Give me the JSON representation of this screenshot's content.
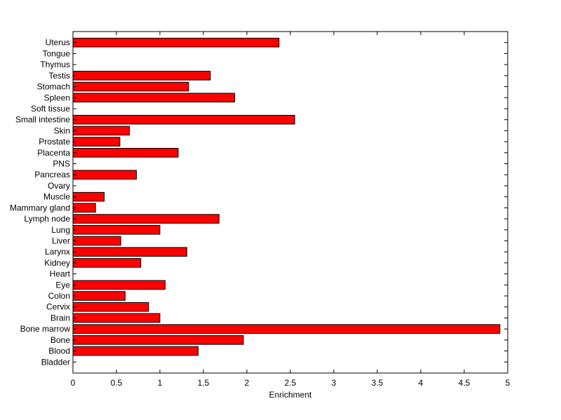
{
  "chart_data": {
    "type": "bar",
    "orientation": "horizontal",
    "title": "",
    "xlabel": "Enrichment",
    "ylabel": "",
    "xlim": [
      0,
      5
    ],
    "x_ticks": [
      "0",
      "0.5",
      "1",
      "1.5",
      "2",
      "2.5",
      "3",
      "3.5",
      "4",
      "4.5",
      "5"
    ],
    "bar_color": "#ff0000",
    "grid": false,
    "legend": "none",
    "categories": [
      "Bladder",
      "Blood",
      "Bone",
      "Bone marrow",
      "Brain",
      "Cervix",
      "Colon",
      "Eye",
      "Heart",
      "Kidney",
      "Larynx",
      "Liver",
      "Lung",
      "Lymph node",
      "Mammary gland",
      "Muscle",
      "Ovary",
      "Pancreas",
      "PNS",
      "Placenta",
      "Prostate",
      "Skin",
      "Small intestine",
      "Soft tissue",
      "Spleen",
      "Stomach",
      "Testis",
      "Thymus",
      "Tongue",
      "Uterus"
    ],
    "values": [
      0,
      1.44,
      1.96,
      4.91,
      1.0,
      0.87,
      0.6,
      1.06,
      0,
      0.78,
      1.31,
      0.55,
      1.0,
      1.68,
      0.26,
      0.36,
      0,
      0.73,
      0,
      1.21,
      0.54,
      0.65,
      2.55,
      0,
      1.86,
      1.33,
      1.58,
      0,
      0,
      2.37
    ]
  }
}
